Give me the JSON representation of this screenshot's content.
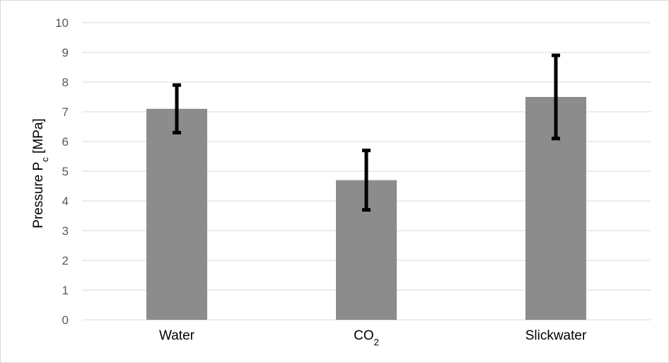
{
  "chart_data": {
    "type": "bar",
    "categories": [
      "Water",
      "CO2",
      "Slickwater"
    ],
    "category_labels": [
      {
        "base": "Water",
        "sub": ""
      },
      {
        "base": "CO",
        "sub": "2"
      },
      {
        "base": "Slickwater",
        "sub": ""
      }
    ],
    "values": [
      7.1,
      4.7,
      7.5
    ],
    "error_low": [
      6.3,
      3.7,
      6.1
    ],
    "error_high": [
      7.9,
      5.7,
      8.9
    ],
    "ylabel": {
      "base": "Pressure P",
      "sub": "c",
      "suffix": " [MPa]"
    },
    "xlabel": "",
    "ylim": [
      0,
      10
    ],
    "yticks": [
      "0",
      "1",
      "2",
      "3",
      "4",
      "5",
      "6",
      "7",
      "8",
      "9",
      "10"
    ],
    "grid": true,
    "legend": "none",
    "colors": {
      "bar": "#8c8c8c",
      "error_bar": "#000000",
      "grid": "#d9d9d9"
    }
  }
}
